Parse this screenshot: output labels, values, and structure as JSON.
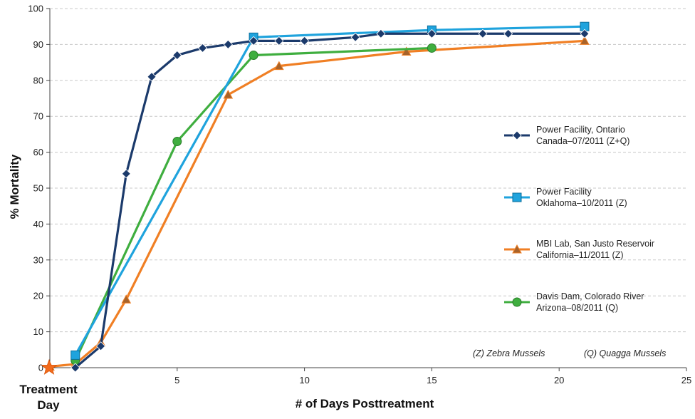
{
  "chart_data": {
    "type": "line",
    "title": "",
    "xlabel": "# of Days Posttreatment",
    "ylabel": "% Mortality",
    "xlim": [
      0,
      25
    ],
    "ylim": [
      0,
      100
    ],
    "xticks": [
      5,
      10,
      15,
      20,
      25
    ],
    "yticks": [
      0,
      10,
      20,
      30,
      40,
      50,
      60,
      70,
      80,
      90,
      100
    ],
    "grid": "horizontal dashed",
    "legend_position": "right",
    "treatment_label": [
      "Treatment",
      "Day"
    ],
    "series": [
      {
        "name": "Power Facility, Ontario Canada–07/2011 (Z+Q)",
        "legend_lines": [
          "Power Facility, Ontario",
          "Canada–07/2011 (Z+Q)"
        ],
        "color": "#1b3a6b",
        "marker": "diamond",
        "points": [
          [
            1,
            0
          ],
          [
            2,
            6
          ],
          [
            3,
            54
          ],
          [
            4,
            81
          ],
          [
            5,
            87
          ],
          [
            6,
            89
          ],
          [
            7,
            90
          ],
          [
            8,
            91
          ],
          [
            9,
            91
          ],
          [
            10,
            91
          ],
          [
            12,
            92
          ],
          [
            13,
            93
          ],
          [
            15,
            93
          ],
          [
            17,
            93
          ],
          [
            18,
            93
          ],
          [
            21,
            93
          ]
        ]
      },
      {
        "name": "Power Facility Oklahoma–10/2011 (Z)",
        "legend_lines": [
          "Power Facility",
          "Oklahoma–10/2011 (Z)"
        ],
        "color": "#1fa3dd",
        "marker": "square",
        "points": [
          [
            1,
            3.5
          ],
          [
            8,
            92
          ],
          [
            15,
            94
          ],
          [
            21,
            95
          ]
        ]
      },
      {
        "name": "MBI Lab, San Justo Reservoir California–11/2011 (Z)",
        "legend_lines": [
          "MBI Lab, San Justo Reservoir",
          "California–11/2011 (Z)"
        ],
        "color": "#f07f24",
        "marker": "triangle",
        "points": [
          [
            0,
            0.3
          ],
          [
            1,
            1
          ],
          [
            2,
            7
          ],
          [
            3,
            19
          ],
          [
            7,
            76
          ],
          [
            9,
            84
          ],
          [
            14,
            88
          ],
          [
            21,
            91
          ]
        ]
      },
      {
        "name": "Davis Dam, Colorado River Arizona–08/2011 (Q)",
        "legend_lines": [
          "Davis Dam, Colorado River",
          "Arizona–08/2011 (Q)"
        ],
        "color": "#3fae3f",
        "marker": "circle",
        "points": [
          [
            1,
            2
          ],
          [
            5,
            63
          ],
          [
            8,
            87
          ],
          [
            15,
            89
          ]
        ]
      }
    ],
    "annotations": [
      "(Z) Zebra Mussels",
      "(Q) Quagga Mussels"
    ]
  }
}
